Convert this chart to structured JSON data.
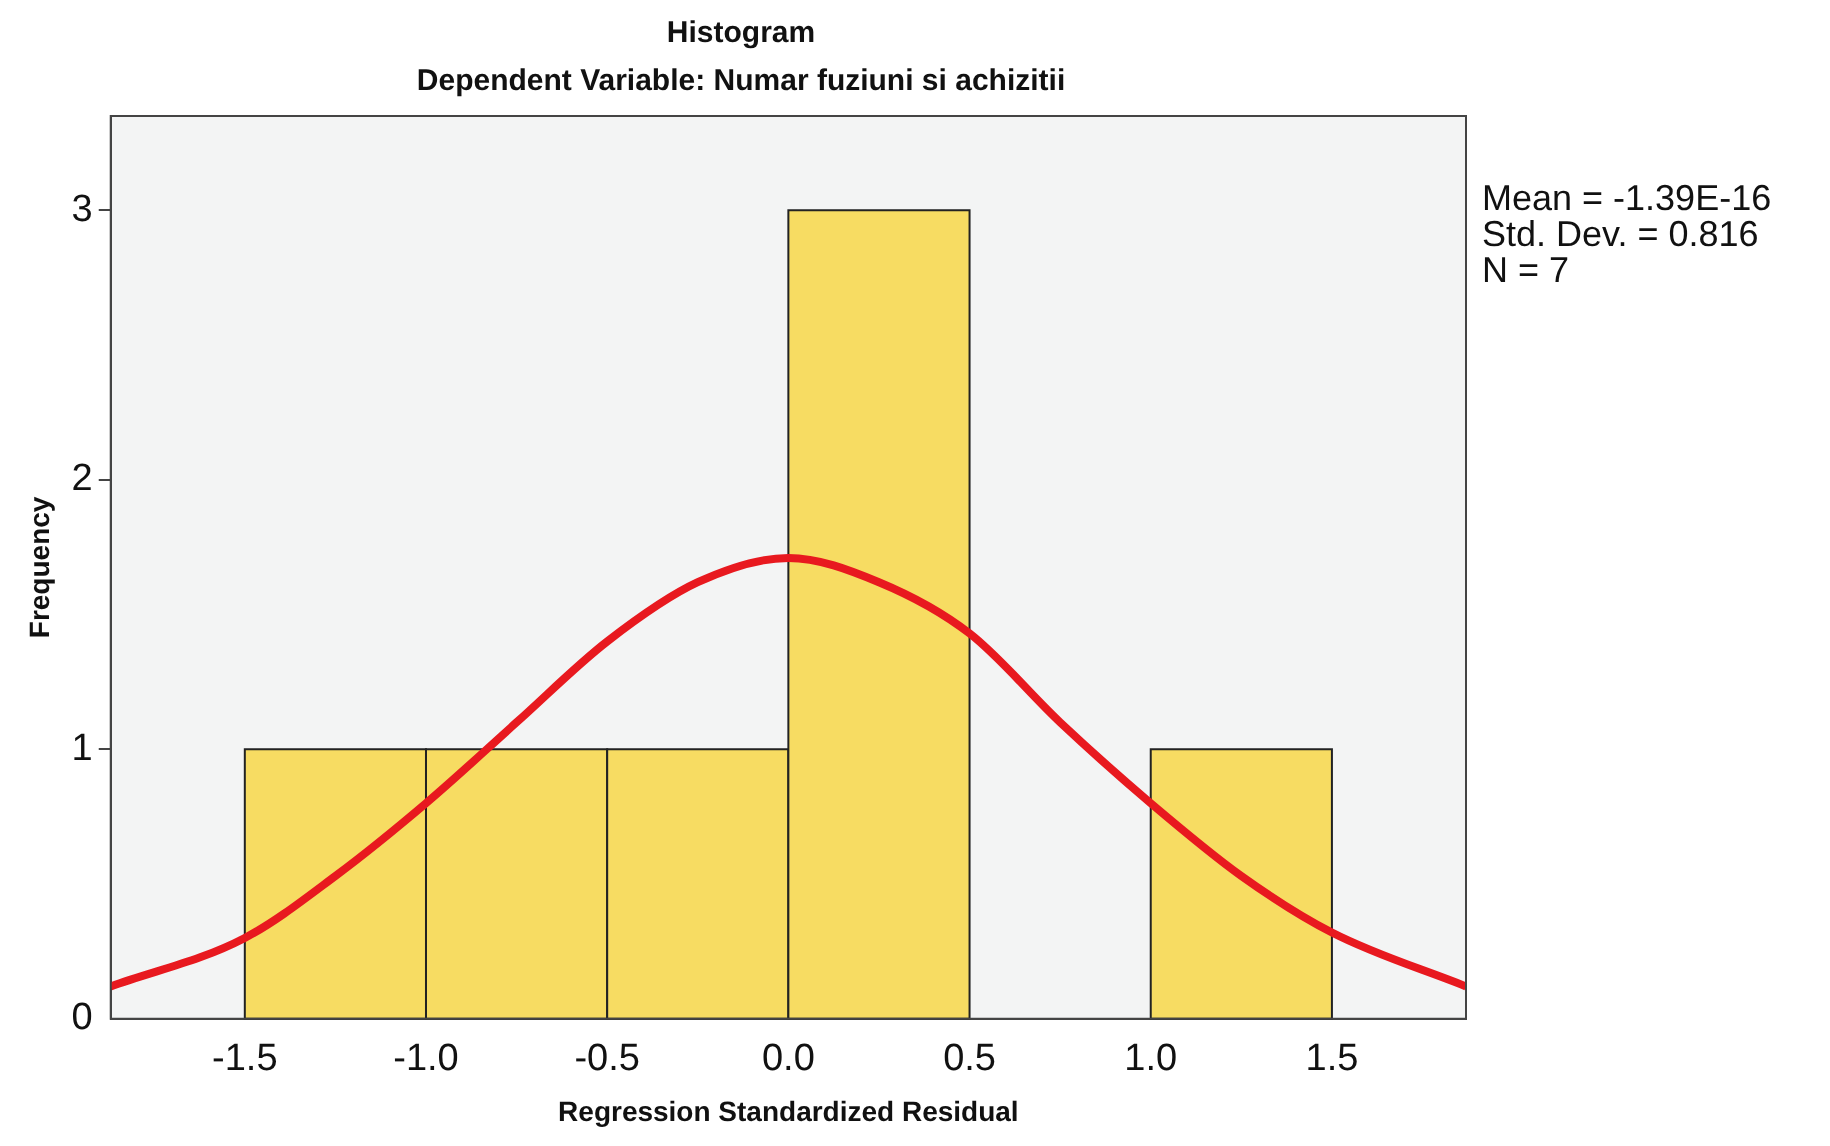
{
  "chart_data": {
    "type": "histogram",
    "title": "Histogram",
    "subtitle": "Dependent Variable: Numar fuziuni si achizitii",
    "xlabel": "Regression Standardized Residual",
    "ylabel": "Frequency",
    "bins": [
      -1.5,
      -1.0,
      -0.5,
      0,
      0.5,
      1.0,
      1.5
    ],
    "values": [
      1,
      1,
      1,
      3,
      0,
      1
    ],
    "color": "#f7dc62",
    "series": [
      {
        "type": "line",
        "color": "#e8191f",
        "x": [
          -1.87,
          -1.5,
          -1.25,
          -1.0,
          -0.75,
          -0.5,
          -0.25,
          0,
          0.25,
          0.5,
          0.75,
          1.0,
          1.25,
          1.5,
          1.87
        ],
        "values": [
          0.12,
          0.3,
          0.53,
          0.8,
          1.1,
          1.4,
          1.62,
          1.71,
          1.62,
          1.43,
          1.1,
          0.8,
          0.53,
          0.32,
          0.12
        ]
      }
    ],
    "xlim": [
      -1.87,
      1.87
    ],
    "xticks": [
      -1.5,
      {
        "value": -1.0,
        "label": "-1.0"
      },
      -0.5,
      {
        "value": 0,
        "label": "0.0"
      },
      0.5,
      {
        "value": 1.0,
        "label": "1.0"
      },
      1.5
    ],
    "ylim": [
      0,
      3.35
    ],
    "yticks": [
      0,
      1,
      2,
      3
    ],
    "grid": false,
    "legend": false,
    "annotations": [
      "Mean = -1.39E-16",
      "Std. Dev. = 0.816",
      "N = 7"
    ]
  }
}
